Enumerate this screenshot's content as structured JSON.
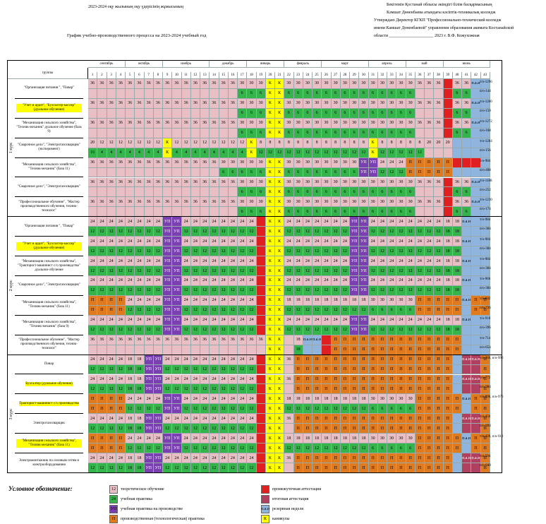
{
  "header": {
    "left_line": "2023-2024 оқу жылының оқу үдерісінің жұмысының",
    "title": "График учебно-производственного процесса на 2023-2024 учебный год",
    "right_lines": [
      "Бекітемін Қостанай облысы әкімдігі білім басқармасының",
      "Кәмшат Дөненбаева атындағы кәсіптік-техникалық колледж",
      "Утверждаю Директор КГКП \"Профессионально-технический колледж",
      "имени Камшат Доненбаевой\" управления образования акимата Костанайской",
      "области _____________________ 2023 г. В.Ф. Кожухожная"
    ]
  },
  "months": [
    "сентябрь",
    "октябрь",
    "ноябрь",
    "декабрь",
    "январь",
    "февраль",
    "март",
    "апрель",
    "май",
    "июнь"
  ],
  "groups_label": "группы",
  "weeks": [
    "1",
    "2",
    "3",
    "4",
    "5",
    "6",
    "7",
    "8",
    "9",
    "10",
    "11",
    "12",
    "13",
    "14",
    "15",
    "16",
    "17",
    "18",
    "19",
    "20",
    "21",
    "22",
    "23",
    "24",
    "25",
    "26",
    "27",
    "28",
    "29",
    "30",
    "31",
    "32",
    "33",
    "34",
    "35",
    "36",
    "37",
    "38",
    "39",
    "40",
    "41",
    "42",
    "43"
  ],
  "colors": {
    "theory": "#e8bfc4",
    "practice": "#34b44a",
    "practice_prod": "#7a3fb0",
    "production": "#e07a1f",
    "interim": "#e02020",
    "final": "#b04060",
    "reserve": "#8fb4dd",
    "holiday": "#ffff00"
  },
  "courses": [
    "1 курс",
    "2 курс",
    "3 курс"
  ],
  "rows": [
    {
      "course": 0,
      "name": "\"Организация питания \", \"Повар\"",
      "note1": "т/о-1296",
      "note2": "п/о-144",
      "pat": "A"
    },
    {
      "course": 0,
      "name": "\"Учет и аудит\", \"Бухгалтер-кассир\" (дуальное обучение)",
      "note1": "т/о-1260",
      "note2": "п/о-150",
      "pat": "A",
      "hl": true
    },
    {
      "course": 0,
      "name": "\"Механизация сельского хозяйства\", \"Техник-механик\" дуальное обучение (база 9)",
      "note1": "т/о-1272",
      "note2": "п/о-168",
      "pat": "A"
    },
    {
      "course": 0,
      "name": "\"Сварочное дело\", \"Электрогазосварщик\" (эксперимент)",
      "note1": "т/о-1284",
      "note2": "п/о-156",
      "pat": "B"
    },
    {
      "course": 0,
      "name": "\"Механизация сельского хозяйства\", \"Техник-механик\" (база 11)",
      "note1": "т/о-984",
      "note2": "п/о-408",
      "pat": "C"
    },
    {
      "course": 0,
      "name": "\"Сварочное дело\", \"Электрогазосварщик\"",
      "note1": "т/о-1188",
      "note2": "п/о-252",
      "pat": "A"
    },
    {
      "course": 0,
      "name": "\"Профессиональное обучение\", \"Мастер производственного обучения, техник-технолог\"",
      "note1": "т/о-1230",
      "note2": "п/о-174",
      "pat": "A"
    },
    {
      "course": 1,
      "name": "\"Организация питания \", \"Повар\"",
      "note1": "т/о-984",
      "note2": "п/о-384",
      "pat": "D"
    },
    {
      "course": 1,
      "name": "\"Учет и аудит\", \"Бухгалтер-кассир\" (дуальное обучение)",
      "note1": "т/о-984",
      "note2": "п/о-384",
      "pat": "D",
      "hl": true
    },
    {
      "course": 1,
      "name": "\"Механизация сельского хозяйства\", \"Тракторист-машинист с/х производства\" дуальное обучение",
      "note1": "т/о-984",
      "note2": "п/о-384",
      "pat": "D"
    },
    {
      "course": 1,
      "name": "\"Сварочное дело\", \"Электрогазосварщик\"",
      "note1": "т/о-966",
      "note2": "п/о-384",
      "pat": "D"
    },
    {
      "course": 1,
      "name": "\"Механизация сельского хозяйства\", \"Техник-механик\" (база 11)",
      "note1": "т/о-642",
      "note2": "п/о-726",
      "pat": "E"
    },
    {
      "course": 1,
      "name": "\"Механизация сельского хозяйства\", \"Техник-механик\" (база 9)",
      "note1": "т/о-918",
      "note2": "п/о-396",
      "pat": "D"
    },
    {
      "course": 1,
      "name": "\"Профессиональное обучение\", \"Мастер производственного обучения, техник-технолог\"",
      "note1": "т/о-714",
      "note2": "п/о-654",
      "pat": "F"
    },
    {
      "course": 2,
      "name": "Повар",
      "note1": "т/о-360, п/о-996",
      "note2": "",
      "pat": "G"
    },
    {
      "course": 2,
      "name": "Бухгалтер (дуальное обучение)",
      "note1": "т/о-772",
      "note2": "п/о-984",
      "pat": "G",
      "hl": true
    },
    {
      "course": 2,
      "name": "Тракторист-машинист с/х производства",
      "note1": "т/о-808, п/о-976",
      "note2": "",
      "pat": "E",
      "hl": true
    },
    {
      "course": 2,
      "name": "Электрогазосварщик",
      "note1": "т/о-450",
      "note2": "п/о-894",
      "pat": "G"
    },
    {
      "course": 2,
      "name": "\"Механизация сельского хозяйства\", \"Техник-механик\" (база 11)",
      "note1": "т/о-420, п/о-912",
      "note2": "",
      "pat": "E",
      "hl": true
    },
    {
      "course": 2,
      "name": "Электромонтажник по силовым сетям и электрооборудованию",
      "note1": "т/о-504",
      "note2": "п/о-840",
      "pat": "G"
    }
  ],
  "legend_title": "Условное обозначение:",
  "legend": [
    {
      "code": "12",
      "label": "теоретическое обучение",
      "color": "theory"
    },
    {
      "code": "24",
      "label": "учебная практика",
      "color": "practice"
    },
    {
      "code": "УП",
      "label": "учебная практика на производстве",
      "color": "practice_prod"
    },
    {
      "code": "П",
      "label": "производственная (технологическая) практика",
      "color": "production"
    },
    {
      "code": "",
      "label": "промежуточная аттестация",
      "color": "interim"
    },
    {
      "code": "",
      "label": "итоговая аттестация",
      "color": "final"
    },
    {
      "code": "п.а.н",
      "label": "резервная неделя",
      "color": "reserve"
    },
    {
      "code": "К",
      "label": "каникулы",
      "color": "holiday"
    }
  ]
}
